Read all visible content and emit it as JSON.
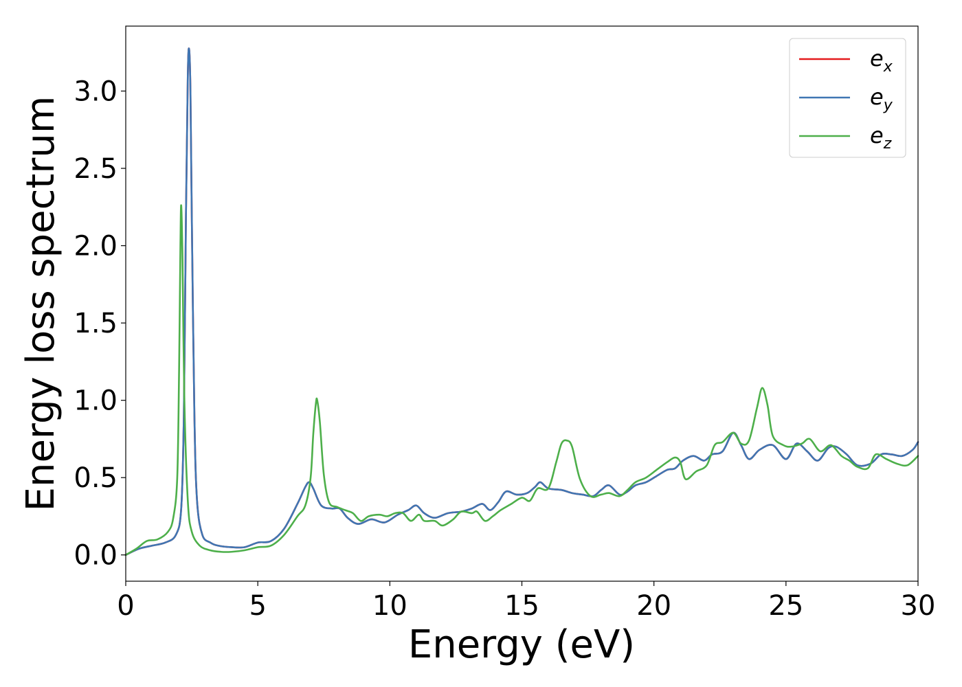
{
  "chart_data": {
    "type": "line",
    "title": "",
    "xlabel": "Energy (eV)",
    "ylabel": "Energy loss spectrum",
    "xlim": [
      0,
      30
    ],
    "ylim": [
      -0.17,
      3.42
    ],
    "xticks": [
      "0",
      "5",
      "10",
      "15",
      "20",
      "25",
      "30"
    ],
    "yticks": [
      "0.0",
      "0.5",
      "1.0",
      "1.5",
      "2.0",
      "2.5",
      "3.0"
    ],
    "grid": false,
    "legend_position": "top-right",
    "series": [
      {
        "name": "e",
        "subscript": "x",
        "color": "#e41a1c",
        "points": [
          [
            0,
            0
          ],
          [
            0.5,
            0.04
          ],
          [
            1.0,
            0.06
          ],
          [
            1.5,
            0.08
          ],
          [
            1.9,
            0.13
          ],
          [
            2.1,
            0.3
          ],
          [
            2.2,
            0.9
          ],
          [
            2.28,
            2.2
          ],
          [
            2.35,
            3.1
          ],
          [
            2.4,
            3.27
          ],
          [
            2.45,
            3.0
          ],
          [
            2.5,
            2.2
          ],
          [
            2.6,
            0.9
          ],
          [
            2.7,
            0.35
          ],
          [
            2.9,
            0.13
          ],
          [
            3.2,
            0.08
          ],
          [
            3.5,
            0.06
          ],
          [
            4.0,
            0.05
          ],
          [
            4.5,
            0.05
          ],
          [
            5.0,
            0.08
          ],
          [
            5.5,
            0.09
          ],
          [
            6.0,
            0.17
          ],
          [
            6.5,
            0.33
          ],
          [
            6.8,
            0.44
          ],
          [
            6.95,
            0.47
          ],
          [
            7.1,
            0.43
          ],
          [
            7.4,
            0.32
          ],
          [
            7.8,
            0.3
          ],
          [
            8.1,
            0.3
          ],
          [
            8.4,
            0.24
          ],
          [
            8.8,
            0.2
          ],
          [
            9.3,
            0.23
          ],
          [
            9.8,
            0.21
          ],
          [
            10.3,
            0.26
          ],
          [
            10.7,
            0.29
          ],
          [
            11.0,
            0.32
          ],
          [
            11.3,
            0.27
          ],
          [
            11.7,
            0.24
          ],
          [
            12.2,
            0.27
          ],
          [
            12.7,
            0.28
          ],
          [
            13.1,
            0.3
          ],
          [
            13.5,
            0.33
          ],
          [
            13.8,
            0.29
          ],
          [
            14.1,
            0.34
          ],
          [
            14.4,
            0.41
          ],
          [
            14.8,
            0.39
          ],
          [
            15.2,
            0.4
          ],
          [
            15.5,
            0.44
          ],
          [
            15.7,
            0.47
          ],
          [
            16.0,
            0.43
          ],
          [
            16.5,
            0.42
          ],
          [
            16.9,
            0.4
          ],
          [
            17.3,
            0.39
          ],
          [
            17.7,
            0.38
          ],
          [
            18.0,
            0.42
          ],
          [
            18.3,
            0.45
          ],
          [
            18.7,
            0.39
          ],
          [
            19.0,
            0.41
          ],
          [
            19.3,
            0.45
          ],
          [
            19.7,
            0.47
          ],
          [
            20.1,
            0.51
          ],
          [
            20.5,
            0.55
          ],
          [
            20.8,
            0.56
          ],
          [
            21.1,
            0.61
          ],
          [
            21.5,
            0.64
          ],
          [
            21.9,
            0.61
          ],
          [
            22.2,
            0.65
          ],
          [
            22.6,
            0.67
          ],
          [
            23.0,
            0.79
          ],
          [
            23.3,
            0.71
          ],
          [
            23.6,
            0.62
          ],
          [
            24.0,
            0.68
          ],
          [
            24.5,
            0.71
          ],
          [
            25.0,
            0.62
          ],
          [
            25.4,
            0.72
          ],
          [
            25.8,
            0.67
          ],
          [
            26.2,
            0.61
          ],
          [
            26.6,
            0.69
          ],
          [
            26.9,
            0.7
          ],
          [
            27.3,
            0.65
          ],
          [
            27.7,
            0.58
          ],
          [
            28.2,
            0.59
          ],
          [
            28.6,
            0.65
          ],
          [
            29.0,
            0.65
          ],
          [
            29.4,
            0.64
          ],
          [
            29.8,
            0.68
          ],
          [
            30.0,
            0.73
          ]
        ]
      },
      {
        "name": "e",
        "subscript": "y",
        "color": "#3f76b3",
        "points": [
          [
            0,
            0
          ],
          [
            0.5,
            0.04
          ],
          [
            1.0,
            0.06
          ],
          [
            1.5,
            0.08
          ],
          [
            1.9,
            0.13
          ],
          [
            2.1,
            0.3
          ],
          [
            2.2,
            0.9
          ],
          [
            2.28,
            2.2
          ],
          [
            2.35,
            3.1
          ],
          [
            2.4,
            3.27
          ],
          [
            2.45,
            3.0
          ],
          [
            2.5,
            2.2
          ],
          [
            2.6,
            0.9
          ],
          [
            2.7,
            0.35
          ],
          [
            2.9,
            0.13
          ],
          [
            3.2,
            0.08
          ],
          [
            3.5,
            0.06
          ],
          [
            4.0,
            0.05
          ],
          [
            4.5,
            0.05
          ],
          [
            5.0,
            0.08
          ],
          [
            5.5,
            0.09
          ],
          [
            6.0,
            0.17
          ],
          [
            6.5,
            0.33
          ],
          [
            6.8,
            0.44
          ],
          [
            6.95,
            0.47
          ],
          [
            7.1,
            0.43
          ],
          [
            7.4,
            0.32
          ],
          [
            7.8,
            0.3
          ],
          [
            8.1,
            0.3
          ],
          [
            8.4,
            0.24
          ],
          [
            8.8,
            0.2
          ],
          [
            9.3,
            0.23
          ],
          [
            9.8,
            0.21
          ],
          [
            10.3,
            0.26
          ],
          [
            10.7,
            0.29
          ],
          [
            11.0,
            0.32
          ],
          [
            11.3,
            0.27
          ],
          [
            11.7,
            0.24
          ],
          [
            12.2,
            0.27
          ],
          [
            12.7,
            0.28
          ],
          [
            13.1,
            0.3
          ],
          [
            13.5,
            0.33
          ],
          [
            13.8,
            0.29
          ],
          [
            14.1,
            0.34
          ],
          [
            14.4,
            0.41
          ],
          [
            14.8,
            0.39
          ],
          [
            15.2,
            0.4
          ],
          [
            15.5,
            0.44
          ],
          [
            15.7,
            0.47
          ],
          [
            16.0,
            0.43
          ],
          [
            16.5,
            0.42
          ],
          [
            16.9,
            0.4
          ],
          [
            17.3,
            0.39
          ],
          [
            17.7,
            0.38
          ],
          [
            18.0,
            0.42
          ],
          [
            18.3,
            0.45
          ],
          [
            18.7,
            0.39
          ],
          [
            19.0,
            0.41
          ],
          [
            19.3,
            0.45
          ],
          [
            19.7,
            0.47
          ],
          [
            20.1,
            0.51
          ],
          [
            20.5,
            0.55
          ],
          [
            20.8,
            0.56
          ],
          [
            21.1,
            0.61
          ],
          [
            21.5,
            0.64
          ],
          [
            21.9,
            0.61
          ],
          [
            22.2,
            0.65
          ],
          [
            22.6,
            0.67
          ],
          [
            23.0,
            0.79
          ],
          [
            23.3,
            0.71
          ],
          [
            23.6,
            0.62
          ],
          [
            24.0,
            0.68
          ],
          [
            24.5,
            0.71
          ],
          [
            25.0,
            0.62
          ],
          [
            25.4,
            0.72
          ],
          [
            25.8,
            0.67
          ],
          [
            26.2,
            0.61
          ],
          [
            26.6,
            0.69
          ],
          [
            26.9,
            0.7
          ],
          [
            27.3,
            0.65
          ],
          [
            27.7,
            0.58
          ],
          [
            28.2,
            0.59
          ],
          [
            28.6,
            0.65
          ],
          [
            29.0,
            0.65
          ],
          [
            29.4,
            0.64
          ],
          [
            29.8,
            0.68
          ],
          [
            30.0,
            0.73
          ]
        ]
      },
      {
        "name": "e",
        "subscript": "z",
        "color": "#4daf4a",
        "points": [
          [
            0,
            0
          ],
          [
            0.4,
            0.04
          ],
          [
            0.8,
            0.09
          ],
          [
            1.2,
            0.1
          ],
          [
            1.6,
            0.15
          ],
          [
            1.8,
            0.24
          ],
          [
            1.95,
            0.5
          ],
          [
            2.02,
            1.2
          ],
          [
            2.07,
            2.0
          ],
          [
            2.1,
            2.26
          ],
          [
            2.15,
            1.9
          ],
          [
            2.22,
            1.0
          ],
          [
            2.35,
            0.35
          ],
          [
            2.5,
            0.15
          ],
          [
            2.8,
            0.06
          ],
          [
            3.2,
            0.03
          ],
          [
            3.6,
            0.02
          ],
          [
            4.0,
            0.02
          ],
          [
            4.5,
            0.03
          ],
          [
            5.0,
            0.05
          ],
          [
            5.5,
            0.06
          ],
          [
            6.0,
            0.13
          ],
          [
            6.5,
            0.25
          ],
          [
            6.8,
            0.32
          ],
          [
            7.0,
            0.5
          ],
          [
            7.1,
            0.78
          ],
          [
            7.2,
            0.98
          ],
          [
            7.25,
            1.0
          ],
          [
            7.35,
            0.86
          ],
          [
            7.5,
            0.52
          ],
          [
            7.7,
            0.34
          ],
          [
            8.0,
            0.31
          ],
          [
            8.3,
            0.29
          ],
          [
            8.6,
            0.27
          ],
          [
            8.9,
            0.22
          ],
          [
            9.2,
            0.25
          ],
          [
            9.6,
            0.26
          ],
          [
            9.9,
            0.25
          ],
          [
            10.2,
            0.27
          ],
          [
            10.5,
            0.27
          ],
          [
            10.8,
            0.22
          ],
          [
            11.1,
            0.26
          ],
          [
            11.3,
            0.22
          ],
          [
            11.7,
            0.22
          ],
          [
            12.0,
            0.19
          ],
          [
            12.4,
            0.23
          ],
          [
            12.7,
            0.28
          ],
          [
            13.1,
            0.27
          ],
          [
            13.3,
            0.28
          ],
          [
            13.6,
            0.22
          ],
          [
            13.9,
            0.25
          ],
          [
            14.2,
            0.29
          ],
          [
            14.6,
            0.33
          ],
          [
            15.0,
            0.37
          ],
          [
            15.3,
            0.35
          ],
          [
            15.6,
            0.43
          ],
          [
            16.0,
            0.43
          ],
          [
            16.3,
            0.6
          ],
          [
            16.5,
            0.72
          ],
          [
            16.7,
            0.74
          ],
          [
            16.9,
            0.7
          ],
          [
            17.2,
            0.49
          ],
          [
            17.6,
            0.38
          ],
          [
            18.0,
            0.39
          ],
          [
            18.3,
            0.4
          ],
          [
            18.7,
            0.38
          ],
          [
            19.0,
            0.42
          ],
          [
            19.3,
            0.47
          ],
          [
            19.7,
            0.5
          ],
          [
            20.1,
            0.55
          ],
          [
            20.5,
            0.6
          ],
          [
            20.8,
            0.63
          ],
          [
            21.0,
            0.6
          ],
          [
            21.2,
            0.49
          ],
          [
            21.6,
            0.54
          ],
          [
            22.0,
            0.58
          ],
          [
            22.3,
            0.71
          ],
          [
            22.6,
            0.73
          ],
          [
            23.0,
            0.79
          ],
          [
            23.3,
            0.72
          ],
          [
            23.6,
            0.74
          ],
          [
            23.9,
            0.95
          ],
          [
            24.1,
            1.08
          ],
          [
            24.3,
            0.97
          ],
          [
            24.5,
            0.77
          ],
          [
            24.9,
            0.71
          ],
          [
            25.2,
            0.7
          ],
          [
            25.6,
            0.72
          ],
          [
            25.9,
            0.75
          ],
          [
            26.3,
            0.67
          ],
          [
            26.7,
            0.71
          ],
          [
            27.1,
            0.64
          ],
          [
            27.4,
            0.61
          ],
          [
            27.7,
            0.57
          ],
          [
            28.1,
            0.56
          ],
          [
            28.4,
            0.65
          ],
          [
            28.8,
            0.62
          ],
          [
            29.2,
            0.59
          ],
          [
            29.6,
            0.58
          ],
          [
            30.0,
            0.64
          ]
        ]
      }
    ]
  }
}
